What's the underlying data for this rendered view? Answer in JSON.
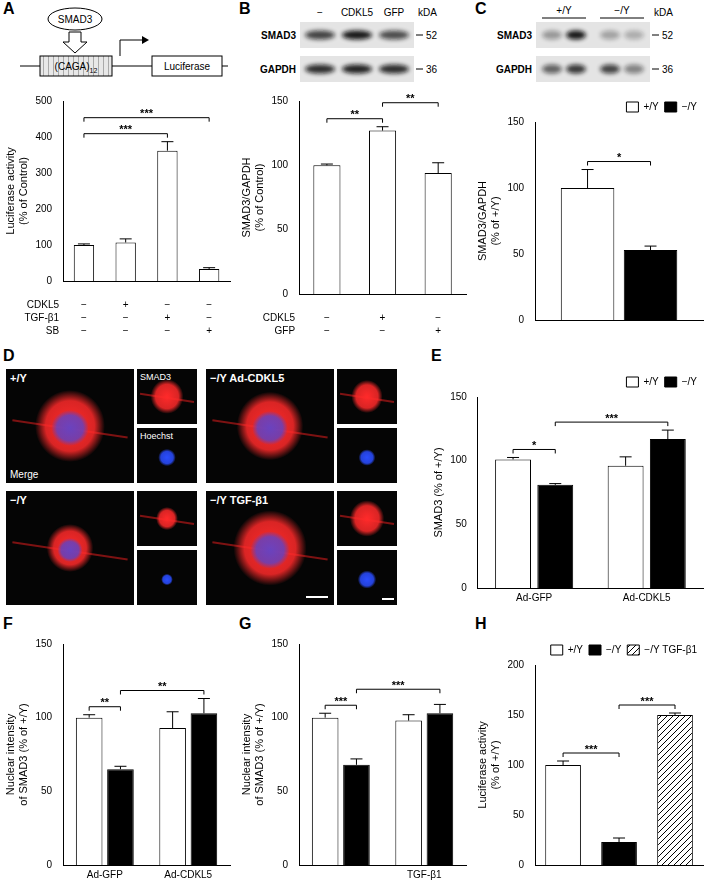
{
  "chart_data": [
    {
      "panel": "A",
      "type": "bar",
      "y_label": [
        "Luciferase activity",
        "(% of Control)"
      ],
      "categories": [
        null,
        null,
        null,
        null
      ],
      "values": [
        100,
        107,
        362,
        33
      ],
      "errors": [
        3,
        10,
        25,
        4
      ],
      "color": "#ffffff",
      "ylim": [
        0,
        500
      ],
      "yticks": [
        0,
        100,
        200,
        300,
        400,
        500
      ],
      "conditions": [
        {
          "name": "CDKL5",
          "values": [
            "−",
            "+",
            "−",
            "−"
          ]
        },
        {
          "name": "TGF-β1",
          "values": [
            "−",
            "−",
            "+",
            "−"
          ]
        },
        {
          "name": "SB",
          "values": [
            "−",
            "−",
            "−",
            "+"
          ]
        }
      ],
      "significance": [
        {
          "from": [
            0,
            0
          ],
          "to": [
            0,
            2
          ],
          "label": "***"
        },
        {
          "from": [
            0,
            0
          ],
          "to": [
            0,
            3
          ],
          "label": "***"
        }
      ],
      "diagram": {
        "factor": "SMAD3",
        "element": "(CAGA)",
        "element_subscript": "12",
        "reporter": "Luciferase"
      }
    },
    {
      "panel": "B",
      "type": "bar",
      "y_label": [
        "SMAD3/GAPDH",
        "(% of Control)"
      ],
      "categories": [
        null,
        null,
        null
      ],
      "values": [
        100,
        127,
        94
      ],
      "errors": [
        1,
        3,
        8
      ],
      "color": "#ffffff",
      "ylim": [
        0,
        150
      ],
      "yticks": [
        0,
        50,
        100,
        150
      ],
      "conditions": [
        {
          "name": "CDKL5",
          "values": [
            "−",
            "+",
            "−"
          ]
        },
        {
          "name": "GFP",
          "values": [
            "−",
            "−",
            "+"
          ]
        }
      ],
      "significance": [
        {
          "from": [
            0,
            0
          ],
          "to": [
            0,
            1
          ],
          "label": "**"
        },
        {
          "from": [
            0,
            1
          ],
          "to": [
            0,
            2
          ],
          "label": "**"
        }
      ],
      "blot": {
        "lanes": [
          "−",
          "CDKL5",
          "GFP"
        ],
        "rows": [
          "SMAD3",
          "GAPDH"
        ],
        "unit": "kDA",
        "markers": [
          52,
          36
        ]
      }
    },
    {
      "panel": "C",
      "type": "bar",
      "y_label": [
        "SMAD3/GAPDH",
        "(% of +/Y)"
      ],
      "categories": [
        null
      ],
      "series": [
        {
          "name": "+/Y",
          "color": "#ffffff",
          "values": [
            100
          ],
          "errors": [
            14
          ]
        },
        {
          "name": "−/Y",
          "color": "#000000",
          "values": [
            53
          ],
          "errors": [
            3
          ]
        }
      ],
      "legend": "top-right",
      "ylim": [
        0,
        150
      ],
      "yticks": [
        0,
        50,
        100,
        150
      ],
      "significance": [
        {
          "from": [
            0,
            0
          ],
          "to": [
            1,
            0
          ],
          "label": "*"
        }
      ],
      "blot": {
        "groups": [
          "+/Y",
          "−/Y"
        ],
        "rows": [
          "SMAD3",
          "GAPDH"
        ],
        "unit": "kDA",
        "markers": [
          52,
          36
        ]
      }
    },
    {
      "panel": "E",
      "type": "bar",
      "y_label": [
        "SMAD3 (% of +/Y)"
      ],
      "categories": [
        "Ad-GFP",
        "Ad-CDKL5"
      ],
      "series": [
        {
          "name": "+/Y",
          "color": "#ffffff",
          "values": [
            101,
            96
          ],
          "errors": [
            1.5,
            7
          ]
        },
        {
          "name": "−/Y",
          "color": "#000000",
          "values": [
            81,
            117
          ],
          "errors": [
            1,
            7
          ]
        }
      ],
      "legend": "top-right",
      "ylim": [
        0,
        150
      ],
      "yticks": [
        0,
        50,
        100,
        150
      ],
      "significance": [
        {
          "from": [
            0,
            0
          ],
          "to": [
            1,
            0
          ],
          "label": "*"
        },
        {
          "from": [
            1,
            0
          ],
          "to": [
            1,
            1
          ],
          "label": "***"
        }
      ]
    },
    {
      "panel": "F",
      "type": "bar",
      "y_label": [
        "Nuclear intensity",
        "of SMAD3 (% of +/Y)"
      ],
      "categories": [
        "Ad-GFP",
        "Ad-CDKL5"
      ],
      "series": [
        {
          "name": "+/Y",
          "color": "#ffffff",
          "values": [
            100,
            93
          ],
          "errors": [
            2,
            11
          ]
        },
        {
          "name": "−/Y",
          "color": "#000000",
          "values": [
            65,
            103
          ],
          "errors": [
            2,
            10
          ]
        }
      ],
      "ylim": [
        0,
        150
      ],
      "yticks": [
        0,
        50,
        100,
        150
      ],
      "significance": [
        {
          "from": [
            0,
            0
          ],
          "to": [
            1,
            0
          ],
          "label": "**"
        },
        {
          "from": [
            1,
            0
          ],
          "to": [
            1,
            1
          ],
          "label": "**"
        }
      ]
    },
    {
      "panel": "G",
      "type": "bar",
      "y_label": [
        "Nuclear intensity",
        "of SMAD3 (% of +/Y)"
      ],
      "categories": [
        null,
        "TGF-β1"
      ],
      "series": [
        {
          "name": "+/Y",
          "color": "#ffffff",
          "values": [
            100,
            98
          ],
          "errors": [
            3,
            4
          ]
        },
        {
          "name": "−/Y",
          "color": "#000000",
          "values": [
            68,
            103
          ],
          "errors": [
            4,
            6
          ]
        }
      ],
      "ylim": [
        0,
        150
      ],
      "yticks": [
        0,
        50,
        100,
        150
      ],
      "significance": [
        {
          "from": [
            0,
            0
          ],
          "to": [
            1,
            0
          ],
          "label": "***"
        },
        {
          "from": [
            1,
            0
          ],
          "to": [
            1,
            1
          ],
          "label": "***"
        }
      ]
    },
    {
      "panel": "H",
      "type": "bar",
      "y_label": [
        "Luciferase activity",
        "(% of +/Y)"
      ],
      "categories": [
        null,
        null,
        null
      ],
      "series": [
        {
          "name": "+/Y",
          "color": "#ffffff",
          "values": [
            100,
            null,
            null
          ],
          "errors": [
            4,
            null,
            null
          ]
        },
        {
          "name": "−/Y",
          "color": "#000000",
          "values": [
            null,
            23,
            null
          ],
          "errors": [
            null,
            4,
            null
          ]
        },
        {
          "name": "−/Y TGF-β1",
          "color": "#ffffff",
          "line_style": "hatched",
          "values": [
            null,
            null,
            150
          ],
          "errors": [
            null,
            null,
            2
          ]
        }
      ],
      "legend": "top-right",
      "ylim": [
        0,
        200
      ],
      "yticks": [
        0,
        50,
        100,
        150,
        200
      ],
      "significance": [
        {
          "from": [
            0,
            0
          ],
          "to": [
            1,
            1
          ],
          "label": "***"
        },
        {
          "from": [
            1,
            1
          ],
          "to": [
            2,
            2
          ],
          "label": "***"
        }
      ]
    }
  ],
  "figure": {
    "panel": "D",
    "merge_label": "Merge",
    "channels": [
      "SMAD3",
      "Hoechst"
    ],
    "images": [
      "+/Y",
      "−/Y Ad-CDKL5",
      "−/Y",
      "−/Y TGF-β1"
    ]
  }
}
